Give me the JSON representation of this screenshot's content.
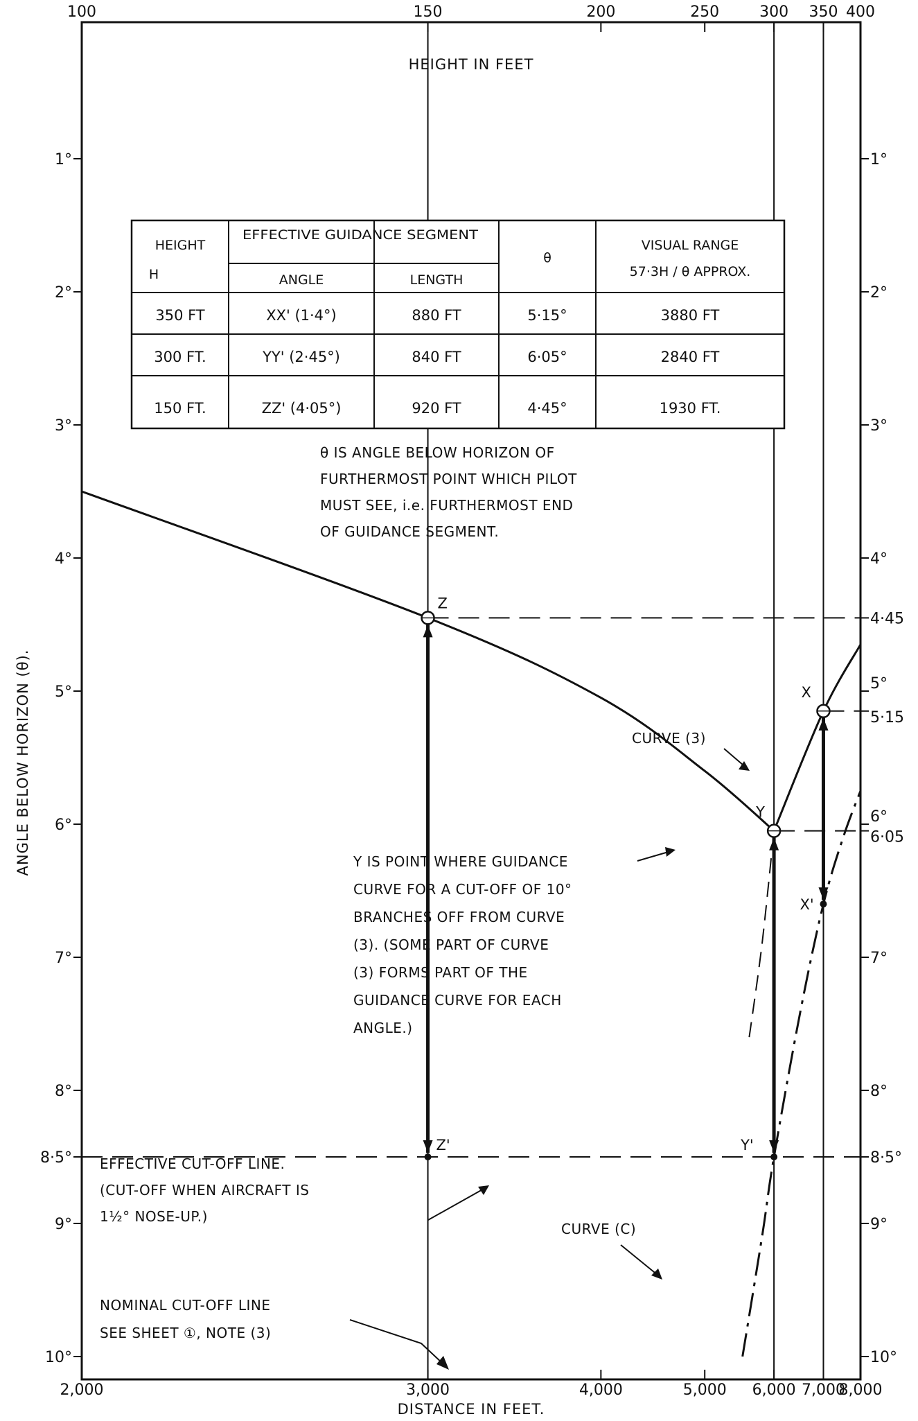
{
  "chart_data": {
    "type": "line",
    "title": "HEIGHT IN FEET",
    "xlabel": "DISTANCE IN FEET.",
    "ylabel": "ANGLE BELOW HORIZON (θ).",
    "x_scale": "reciprocal",
    "x_ticks": [
      "2,000",
      "3,000",
      "4,000",
      "5,000",
      "6,000",
      "7,000",
      "8,000"
    ],
    "x_tick_values": [
      2000,
      3000,
      4000,
      5000,
      6000,
      7000,
      8000
    ],
    "top_ticks": [
      "100",
      "150",
      "200",
      "250",
      "300",
      "350",
      "400"
    ],
    "y_ticks_left": [
      "1°",
      "2°",
      "3°",
      "4°",
      "5°",
      "6°",
      "7°",
      "8°",
      "8·5°",
      "9°",
      "10°"
    ],
    "y_ticks_right": [
      "1°",
      "2°",
      "3°",
      "4°",
      "4·45",
      "5°",
      "5·15",
      "6°",
      "6·05",
      "7°",
      "8°",
      "8·5°",
      "9°",
      "10°"
    ],
    "ylim": [
      10,
      0
    ],
    "xlim": [
      2000,
      8000
    ],
    "series": [
      {
        "name": "",
        "style": "solid",
        "x": [
          2000,
          3000,
          4000,
          5000,
          6000,
          7000,
          8000
        ],
        "y": [
          3.5,
          4.45,
          5.05,
          5.6,
          6.05,
          5.15,
          4.65
        ]
      },
      {
        "name": "CURVE (C)",
        "style": "dash-dot",
        "x": [
          5500,
          5800,
          6000,
          6500,
          7000,
          7500,
          8000
        ],
        "y": [
          10.0,
          9.1,
          8.5,
          7.4,
          6.6,
          6.1,
          5.75
        ]
      },
      {
        "name": "",
        "style": "dashed",
        "x": [
          5600,
          5800,
          6000
        ],
        "y": [
          7.6,
          6.9,
          6.05
        ]
      }
    ],
    "points": [
      {
        "label": "Z",
        "x": 3000,
        "y": 4.45
      },
      {
        "label": "Z'",
        "x": 3000,
        "y": 8.5
      },
      {
        "label": "Y",
        "x": 6000,
        "y": 6.05
      },
      {
        "label": "Y'",
        "x": 6000,
        "y": 8.5
      },
      {
        "label": "X",
        "x": 7000,
        "y": 5.15
      },
      {
        "label": "X'",
        "x": 7000,
        "y": 6.6
      }
    ],
    "annotations": {
      "curve3": "CURVE (3)",
      "theta_note": [
        "θ IS ANGLE BELOW HORIZON OF",
        "FURTHERMOST POINT WHICH PILOT",
        "MUST SEE, i.e. FURTHERMOST END",
        "OF GUIDANCE SEGMENT."
      ],
      "y_note": [
        "Y IS POINT WHERE GUIDANCE",
        "CURVE FOR A CUT-OFF OF 10°",
        "BRANCHES OFF FROM CURVE",
        "(3). (SOME PART OF CURVE",
        "(3) FORMS PART OF THE",
        "GUIDANCE CURVE FOR EACH",
        "ANGLE.)"
      ],
      "cutoff_note": [
        "EFFECTIVE CUT-OFF LINE.",
        "(CUT-OFF WHEN AIRCRAFT IS",
        "1½° NOSE-UP.)"
      ],
      "nominal_note": [
        "NOMINAL CUT-OFF LINE",
        "SEE SHEET ①, NOTE (3)"
      ]
    },
    "table": {
      "header_height": "HEIGHT",
      "header_h": "H",
      "header_segment": "EFFECTIVE GUIDANCE SEGMENT",
      "header_angle": "ANGLE",
      "header_length": "LENGTH",
      "header_theta": "θ",
      "header_visual": "VISUAL RANGE",
      "header_visual_sub": "57·3H / θ APPROX.",
      "rows": [
        {
          "height": "350 FT",
          "angle": "XX' (1·4°)",
          "length": "880 FT",
          "theta": "5·15°",
          "range": "3880 FT"
        },
        {
          "height": "300 FT.",
          "angle": "YY' (2·45°)",
          "length": "840 FT",
          "theta": "6·05°",
          "range": "2840 FT"
        },
        {
          "height": "150 FT.",
          "angle": "ZZ' (4·05°)",
          "length": "920 FT",
          "theta": "4·45°",
          "range": "1930 FT."
        }
      ]
    }
  }
}
